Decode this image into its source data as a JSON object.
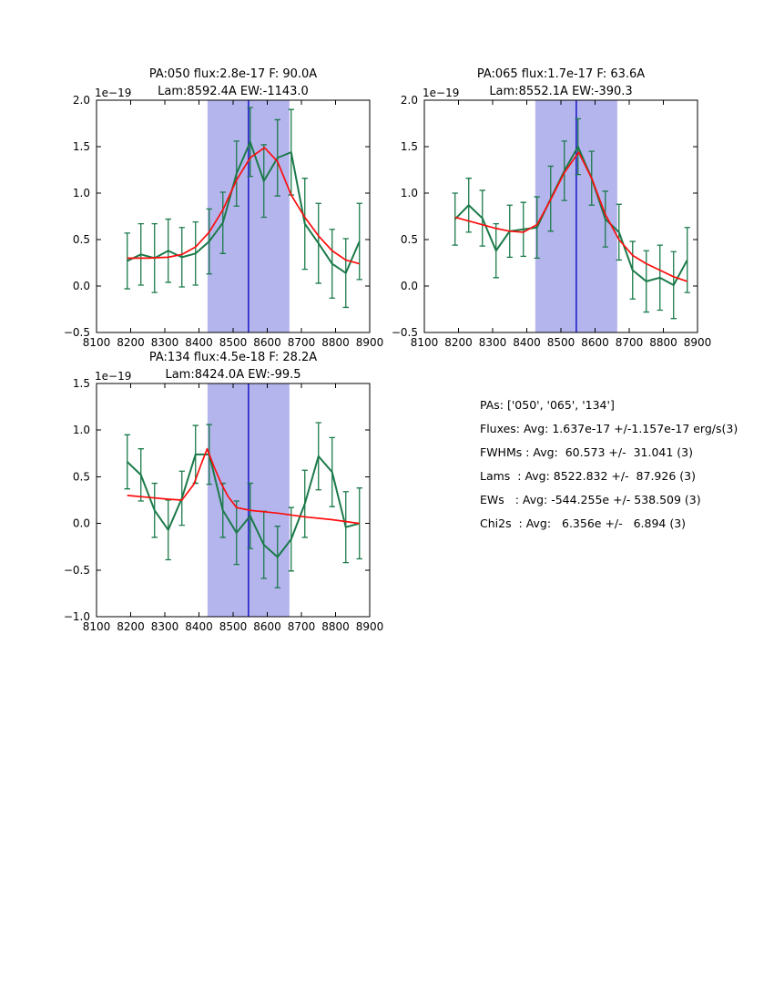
{
  "page": {
    "background": "#ffffff"
  },
  "colors": {
    "data_line": "#1b7a4a",
    "fit_line": "#fd0d0d",
    "center_line": "#1717c8",
    "band_fill": "#b5b5ee",
    "axis": "#000000"
  },
  "stats_panel": {
    "lines": [
      "PAs: ['050', '065', '134']",
      "Fluxes: Avg: 1.637e-17 +/-1.157e-17 erg/s(3)",
      "FWHMs : Avg:  60.573 +/-  31.041 (3)",
      "Lams  : Avg: 8522.832 +/-  87.926 (3)",
      "EWs   : Avg: -544.255e +/- 538.509 (3)",
      "Chi2s  : Avg:   6.356e +/-   6.894 (3)"
    ]
  },
  "chart_data": [
    {
      "type": "line",
      "title_line1": "PA:050 flux:2.8e-17 F: 90.0A",
      "title_line2": "Lam:8592.4A EW:-1143.0",
      "y_offset_label": "1e−19",
      "xlim": [
        8100,
        8900
      ],
      "ylim": [
        -0.5,
        2.0
      ],
      "xtick_values": [
        8100,
        8200,
        8300,
        8400,
        8500,
        8600,
        8700,
        8800,
        8900
      ],
      "xtick_labels": [
        "8100",
        "8200",
        "8300",
        "8400",
        "8500",
        "8600",
        "8700",
        "8800",
        "8900"
      ],
      "ytick_values": [
        2.0,
        1.5,
        1.0,
        0.5,
        0.0,
        -0.5
      ],
      "ytick_labels": [
        "2.0",
        "1.5",
        "1.0",
        "0.5",
        "0.0",
        "−0.5"
      ],
      "band_x": [
        8425,
        8665
      ],
      "vline_x": 8545,
      "grid": false,
      "series": [
        {
          "name": "observed spectrum",
          "x": [
            8190,
            8230,
            8270,
            8310,
            8350,
            8390,
            8430,
            8470,
            8510,
            8550,
            8590,
            8630,
            8670,
            8710,
            8750,
            8790,
            8830,
            8870
          ],
          "y": [
            0.27,
            0.34,
            0.3,
            0.38,
            0.31,
            0.35,
            0.48,
            0.68,
            1.21,
            1.55,
            1.13,
            1.38,
            1.44,
            0.67,
            0.46,
            0.24,
            0.14,
            0.48
          ],
          "yerr": [
            0.3,
            0.33,
            0.37,
            0.34,
            0.32,
            0.34,
            0.35,
            0.33,
            0.35,
            0.37,
            0.39,
            0.41,
            0.46,
            0.49,
            0.43,
            0.37,
            0.37,
            0.41
          ]
        },
        {
          "name": "gaussian fit",
          "x": [
            8190,
            8250,
            8310,
            8350,
            8390,
            8430,
            8470,
            8510,
            8550,
            8592,
            8630,
            8670,
            8710,
            8750,
            8790,
            8830,
            8870
          ],
          "y": [
            0.3,
            0.3,
            0.31,
            0.34,
            0.42,
            0.58,
            0.82,
            1.14,
            1.38,
            1.49,
            1.34,
            0.98,
            0.74,
            0.54,
            0.38,
            0.28,
            0.24
          ]
        }
      ]
    },
    {
      "type": "line",
      "title_line1": "PA:065 flux:1.7e-17 F: 63.6A",
      "title_line2": "Lam:8552.1A EW:-390.3",
      "y_offset_label": "1e−19",
      "xlim": [
        8100,
        8900
      ],
      "ylim": [
        -0.5,
        2.0
      ],
      "xtick_values": [
        8100,
        8200,
        8300,
        8400,
        8500,
        8600,
        8700,
        8800,
        8900
      ],
      "xtick_labels": [
        "8100",
        "8200",
        "8300",
        "8400",
        "8500",
        "8600",
        "8700",
        "8800",
        "8900"
      ],
      "ytick_values": [
        2.0,
        1.5,
        1.0,
        0.5,
        0.0,
        -0.5
      ],
      "ytick_labels": [
        "2.0",
        "1.5",
        "1.0",
        "0.5",
        "0.0",
        "−0.5"
      ],
      "band_x": [
        8425,
        8665
      ],
      "vline_x": 8545,
      "grid": false,
      "series": [
        {
          "name": "observed spectrum",
          "x": [
            8190,
            8230,
            8270,
            8310,
            8350,
            8390,
            8430,
            8470,
            8510,
            8550,
            8590,
            8630,
            8670,
            8710,
            8750,
            8790,
            8830,
            8870
          ],
          "y": [
            0.72,
            0.87,
            0.73,
            0.38,
            0.59,
            0.61,
            0.63,
            0.94,
            1.24,
            1.5,
            1.16,
            0.72,
            0.58,
            0.17,
            0.05,
            0.09,
            0.01,
            0.28
          ],
          "yerr": [
            0.28,
            0.29,
            0.3,
            0.29,
            0.28,
            0.29,
            0.33,
            0.35,
            0.32,
            0.3,
            0.29,
            0.3,
            0.3,
            0.31,
            0.33,
            0.35,
            0.36,
            0.35
          ]
        },
        {
          "name": "gaussian fit",
          "x": [
            8190,
            8230,
            8270,
            8310,
            8350,
            8390,
            8430,
            8470,
            8510,
            8552,
            8590,
            8630,
            8670,
            8710,
            8750,
            8790,
            8830,
            8870
          ],
          "y": [
            0.74,
            0.7,
            0.66,
            0.62,
            0.59,
            0.58,
            0.66,
            0.93,
            1.22,
            1.44,
            1.16,
            0.77,
            0.5,
            0.33,
            0.24,
            0.17,
            0.1,
            0.05
          ]
        }
      ]
    },
    {
      "type": "line",
      "title_line1": "PA:134 flux:4.5e-18 F: 28.2A",
      "title_line2": "Lam:8424.0A EW:-99.5",
      "y_offset_label": "1e−19",
      "xlim": [
        8100,
        8900
      ],
      "ylim": [
        -1.0,
        1.5
      ],
      "xtick_values": [
        8100,
        8200,
        8300,
        8400,
        8500,
        8600,
        8700,
        8800,
        8900
      ],
      "xtick_labels": [
        "8100",
        "8200",
        "8300",
        "8400",
        "8500",
        "8600",
        "8700",
        "8800",
        "8900"
      ],
      "ytick_values": [
        1.5,
        1.0,
        0.5,
        0.0,
        -0.5,
        -1.0
      ],
      "ytick_labels": [
        "1.5",
        "1.0",
        "0.5",
        "0.0",
        "−0.5",
        "−1.0"
      ],
      "band_x": [
        8425,
        8665
      ],
      "vline_x": 8545,
      "grid": false,
      "series": [
        {
          "name": "observed spectrum",
          "x": [
            8190,
            8230,
            8270,
            8310,
            8350,
            8390,
            8430,
            8470,
            8510,
            8550,
            8590,
            8630,
            8670,
            8710,
            8750,
            8790,
            8830,
            8870
          ],
          "y": [
            0.66,
            0.52,
            0.14,
            -0.07,
            0.27,
            0.74,
            0.74,
            0.14,
            -0.1,
            0.08,
            -0.23,
            -0.36,
            -0.17,
            0.21,
            0.72,
            0.55,
            -0.04,
            0.0
          ],
          "yerr": [
            0.29,
            0.28,
            0.29,
            0.32,
            0.29,
            0.31,
            0.32,
            0.29,
            0.34,
            0.35,
            0.36,
            0.33,
            0.34,
            0.36,
            0.36,
            0.37,
            0.38,
            0.38
          ]
        },
        {
          "name": "gaussian fit",
          "x": [
            8190,
            8250,
            8310,
            8350,
            8385,
            8405,
            8424,
            8445,
            8465,
            8485,
            8510,
            8550,
            8630,
            8710,
            8790,
            8870
          ],
          "y": [
            0.3,
            0.28,
            0.26,
            0.25,
            0.42,
            0.62,
            0.8,
            0.6,
            0.43,
            0.29,
            0.17,
            0.14,
            0.11,
            0.07,
            0.04,
            0.0
          ]
        }
      ]
    }
  ]
}
